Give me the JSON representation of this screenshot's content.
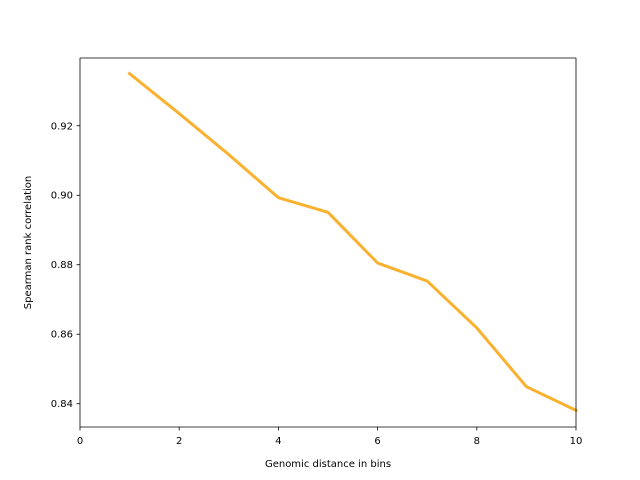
{
  "chart_data": {
    "type": "line",
    "title": "",
    "xlabel": "Genomic distance in bins",
    "ylabel": "Spearman rank correlation",
    "xlim": [
      0,
      10
    ],
    "ylim": [
      0.8333,
      0.9395
    ],
    "xticks": [
      0,
      2,
      4,
      6,
      8,
      10
    ],
    "xtick_labels": [
      "0",
      "2",
      "4",
      "6",
      "8",
      "10"
    ],
    "yticks": [
      0.84,
      0.86,
      0.88,
      0.9,
      0.92
    ],
    "ytick_labels": [
      "0.84",
      "0.86",
      "0.88",
      "0.90",
      "0.92"
    ],
    "grid": false,
    "series": [
      {
        "color": "#fbb130",
        "x": [
          1,
          2,
          3,
          4,
          5,
          6,
          7,
          8,
          9,
          10
        ],
        "y": [
          0.935,
          0.9235,
          0.9117,
          0.8993,
          0.8951,
          0.8805,
          0.8753,
          0.8618,
          0.8449,
          0.8381
        ]
      }
    ]
  }
}
